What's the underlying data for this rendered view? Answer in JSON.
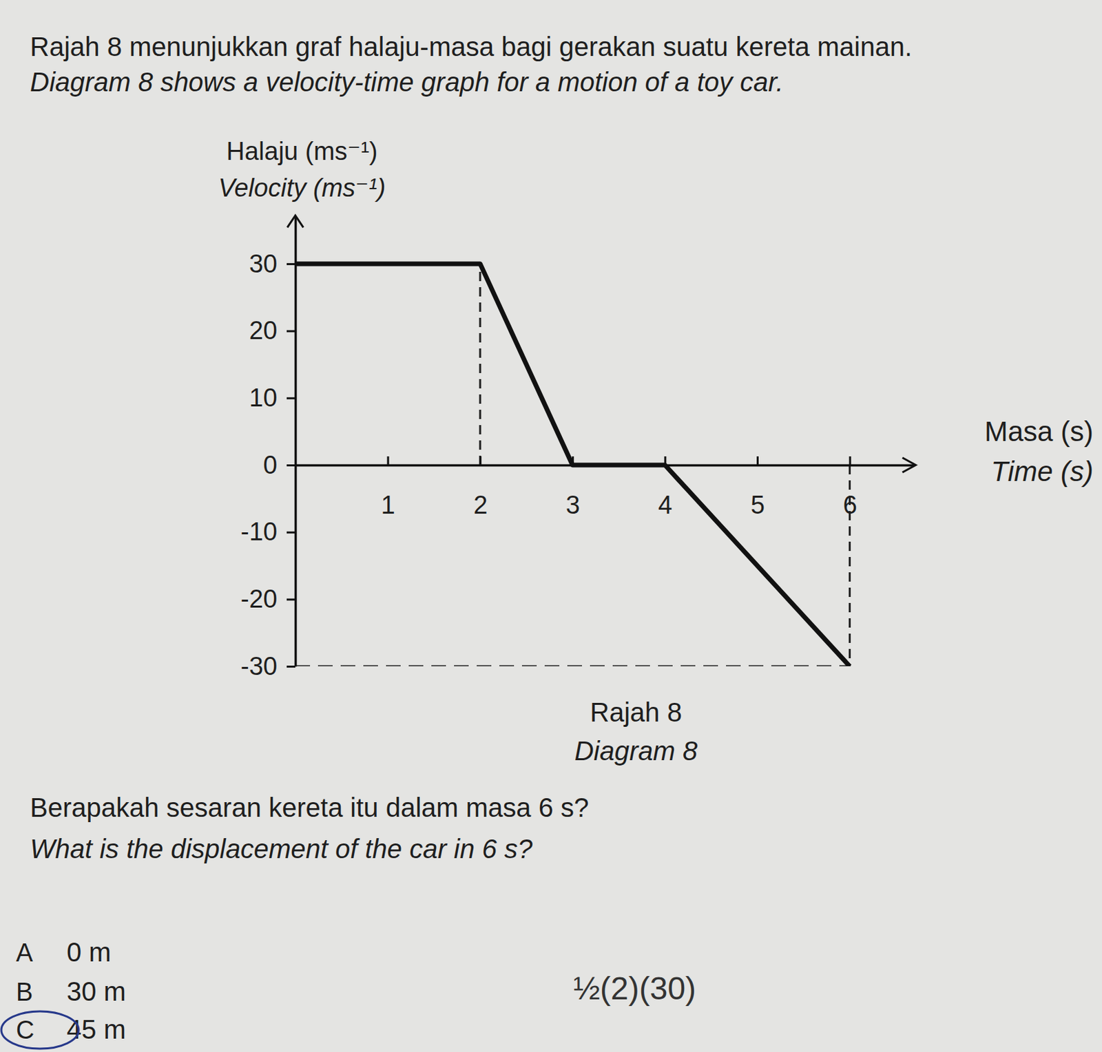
{
  "header": {
    "line_ms": "Rajah 8 menunjukkan graf halaju-masa bagi gerakan suatu kereta mainan.",
    "line_en": "Diagram 8 shows a velocity-time graph for a motion of a toy car."
  },
  "chart_data": {
    "type": "line",
    "y_label": [
      "Halaju (ms⁻¹)",
      "Velocity (ms⁻¹)"
    ],
    "x_label": [
      "Masa (s)",
      "Time (s)"
    ],
    "caption": [
      "Rajah 8",
      "Diagram 8"
    ],
    "x": [
      0,
      2,
      3,
      4,
      6
    ],
    "values": [
      30,
      30,
      0,
      0,
      -30
    ],
    "color": "#111111",
    "xlim": [
      0,
      6.7
    ],
    "ylim": [
      -30,
      37
    ],
    "xticks": [
      1,
      2,
      3,
      4,
      5,
      6
    ],
    "yticks": [
      -30,
      -20,
      -10,
      0,
      10,
      20,
      30
    ]
  },
  "question": {
    "ms": "Berapakah sesaran kereta itu dalam masa 6 s?",
    "en": "What is the displacement of the car in 6 s?"
  },
  "options": [
    {
      "letter": "A",
      "text": "0 m"
    },
    {
      "letter": "B",
      "text": "30 m"
    },
    {
      "letter": "C",
      "text": "45 m"
    }
  ],
  "handwriting": "½(2)(30)"
}
